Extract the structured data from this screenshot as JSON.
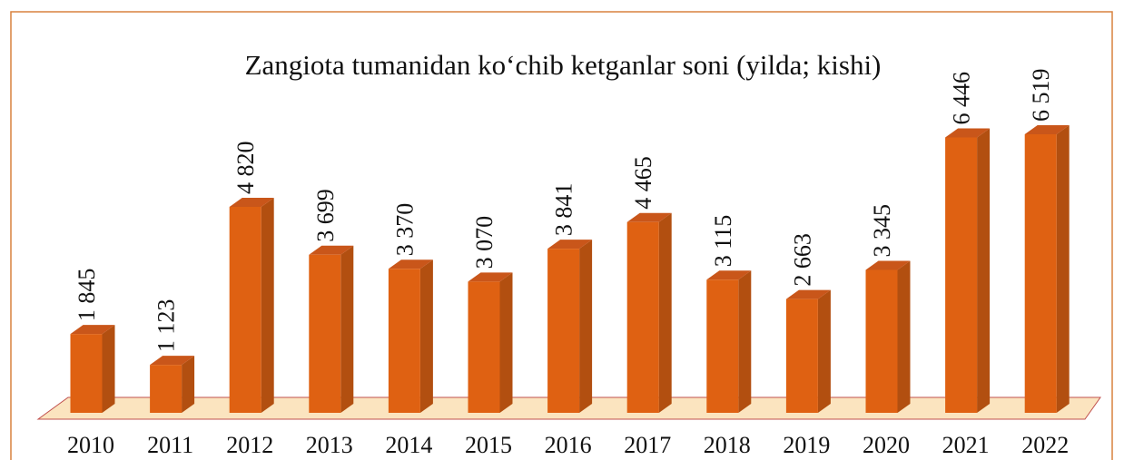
{
  "chart_data": {
    "type": "bar3d",
    "title": "Zangiota tumanidan ko‘chib ketganlar soni (yilda; kishi)",
    "categories": [
      "2010",
      "2011",
      "2012",
      "2013",
      "2014",
      "2015",
      "2016",
      "2017",
      "2018",
      "2019",
      "2020",
      "2021",
      "2022"
    ],
    "values": [
      1845,
      1123,
      4820,
      3699,
      3370,
      3070,
      3841,
      4465,
      3115,
      2663,
      3345,
      6446,
      6519
    ],
    "value_labels": [
      "1 845",
      "1 123",
      "4 820",
      "3 699",
      "3 370",
      "3 070",
      "3 841",
      "4 465",
      "3 115",
      "2 663",
      "3 345",
      "6 446",
      "6 519"
    ],
    "color": "#df6112"
  }
}
